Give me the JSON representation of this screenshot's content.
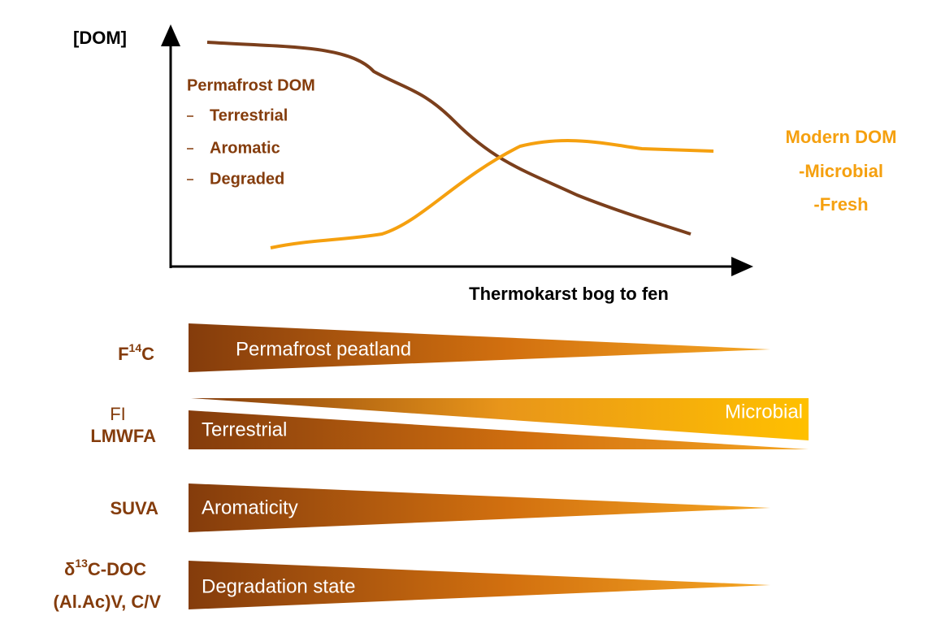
{
  "axes": {
    "y_label": "[DOM]",
    "x_label": "Thermokarst bog to fen"
  },
  "permafrost_dom": {
    "title": "Permafrost DOM",
    "items": [
      "Terrestrial",
      "Aromatic",
      "Degraded"
    ]
  },
  "modern_dom": {
    "title": "Modern DOM",
    "items": [
      "-Microbial",
      "-Fresh"
    ]
  },
  "rows": [
    {
      "label": {
        "base": "F",
        "sup": "14",
        "rest": "C"
      },
      "bar_text": "Permafrost peatland"
    },
    {
      "label_top": "FI",
      "label": "LMWFA",
      "bar_text_left": "Terrestrial",
      "bar_text_right": "Microbial"
    },
    {
      "label": "SUVA",
      "bar_text": "Aromaticity"
    },
    {
      "label": {
        "base": "δ",
        "sup": "13",
        "rest": "C-DOC"
      },
      "label_2": "(Al.Ac)V, C/V",
      "bar_text": "Degradation state"
    }
  ]
}
